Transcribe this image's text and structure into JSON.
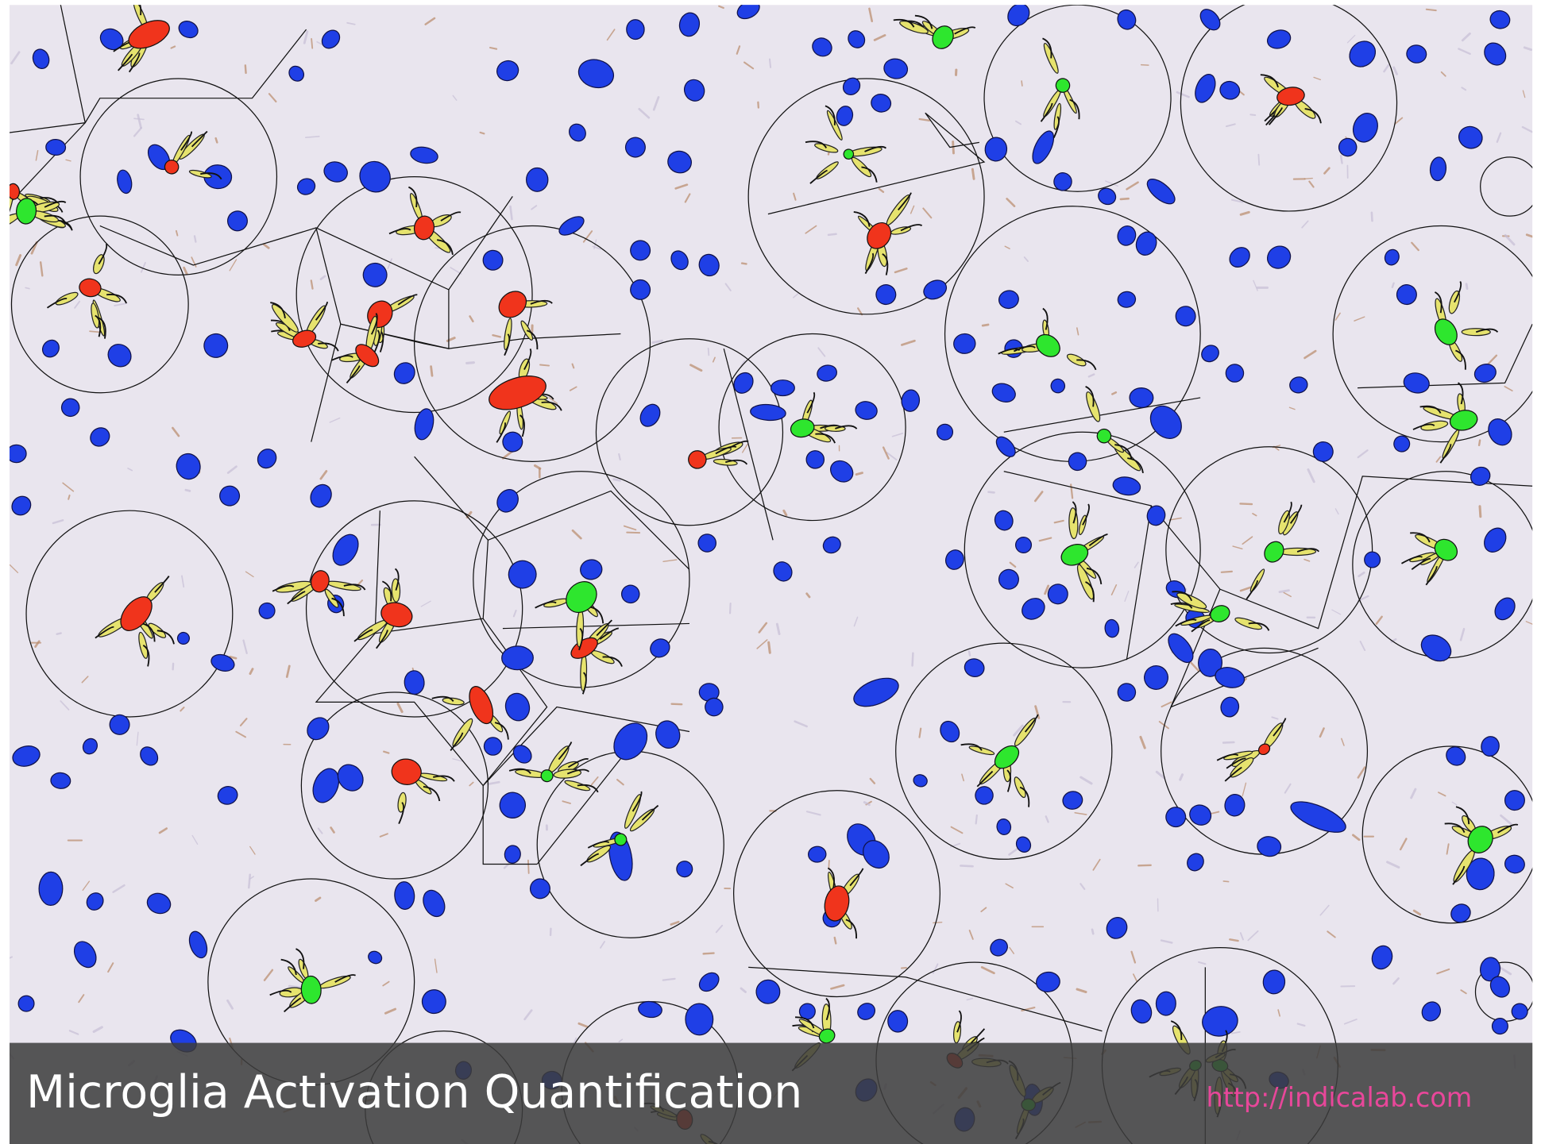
{
  "caption": {
    "title": "Microglia Activation Quantification",
    "url": "http://indicalab.com"
  }
}
